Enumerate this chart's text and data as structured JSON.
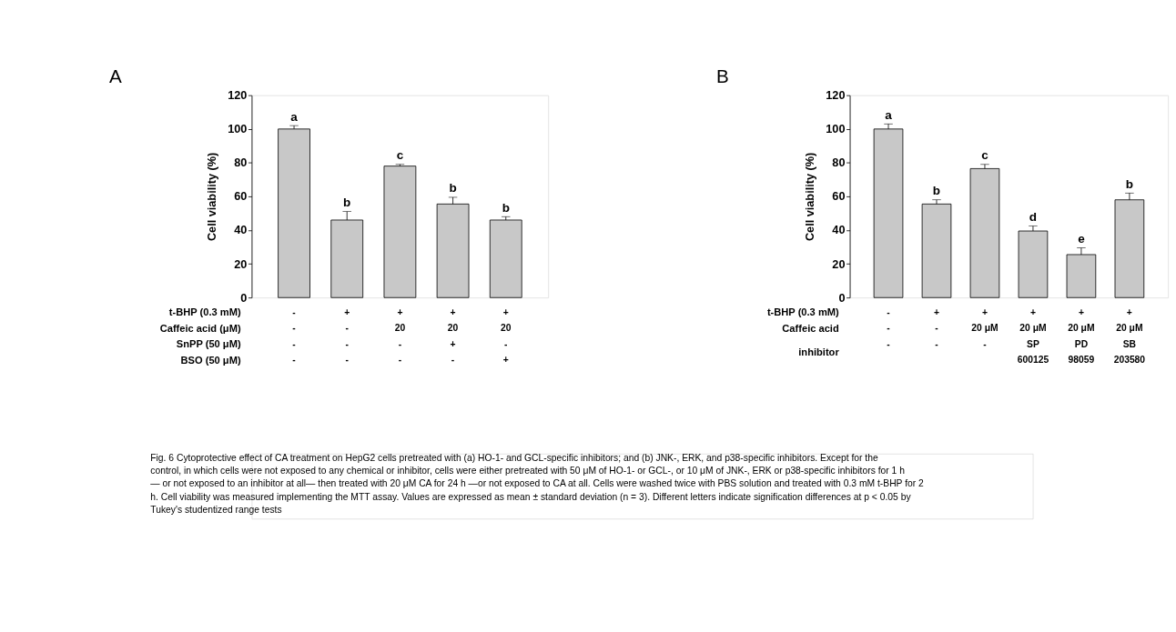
{
  "chart_data": [
    {
      "type": "bar",
      "title": "A",
      "ylabel": "Cell viability (%)",
      "categories": [
        "-\n-\n-\n-",
        "+\n-\n-\n-",
        "+\n20\n-\n-",
        "+\n20\n+\n-",
        "+\n20\n-\n+"
      ],
      "series": [
        {
          "color": "#c8c8c8",
          "values": [
            100,
            46,
            78,
            55.5,
            46
          ],
          "errors": [
            2,
            5,
            1,
            4,
            2
          ],
          "value_labels": [
            "a",
            "b",
            "c",
            "b",
            "b"
          ]
        }
      ],
      "ylim": [
        0,
        120
      ],
      "yticks": [
        0,
        20,
        40,
        60,
        80,
        100,
        120
      ],
      "grid": false,
      "annotations": [
        "t-BHP (0.3 mM)",
        "Caffeic acid (μM)",
        "SnPP (50 μM)",
        "BSO (50 μM)"
      ]
    },
    {
      "type": "bar",
      "title": "B",
      "ylabel": "Cell viability (%)",
      "categories": [
        "-\n-\n-",
        "+\n-\n-",
        "+\n20 μM\n-",
        "+\n20 μM\nSP\n600125",
        "+\n20 μM\nPD\n98059",
        "+\n20 μM\nSB\n203580"
      ],
      "series": [
        {
          "color": "#c8c8c8",
          "values": [
            100,
            55.5,
            76.5,
            39.5,
            25.5,
            58
          ],
          "errors": [
            3,
            2.5,
            2.5,
            3,
            4,
            4
          ],
          "value_labels": [
            "a",
            "b",
            "c",
            "d",
            "e",
            "b"
          ]
        }
      ],
      "ylim": [
        0,
        120
      ],
      "yticks": [
        0,
        20,
        40,
        60,
        80,
        100,
        120
      ],
      "grid": false,
      "annotations": [
        "t-BHP (0.3 mM)",
        "Caffeic acid",
        "inhibitor"
      ]
    },
    {
      "type": "other",
      "annotations": [
        "Fig. 6 Cytoprotective effect of CA treatment on HepG2 cells pretreated with (a) HO-1- and GCL-specific inhibitors; and (b) JNK-, ERK, and p38-specific inhibitors. Except for the control, in which cells were not exposed to any chemical or inhibitor, cells were either pretreated with 50 μM of HO-1- or GCL-, or 10 μM of JNK-, ERK or p38-specific inhibitors for 1 h — or not exposed to an inhibitor at all— then treated with 20 μM CA for 24 h —or not exposed to CA at all. Cells were washed twice with PBS solution and treated with 0.3 mM t-BHP for 2 h. Cell viability was measured implementing the MTT assay. Values are expressed as mean ± standard deviation (n = 3). Different letters indicate signification differences at p < 0.05 by Tukey's studentized range tests"
      ]
    }
  ]
}
